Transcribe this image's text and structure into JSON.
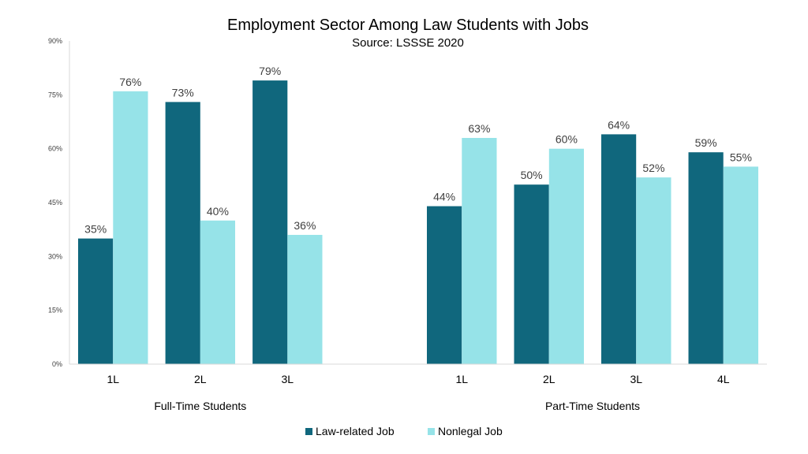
{
  "chart_data": {
    "type": "bar",
    "title": "Employment Sector Among Law Students with Jobs",
    "subtitle": "Source: LSSSE 2020",
    "ylim": [
      0,
      90
    ],
    "yticks": [
      "0%",
      "15%",
      "30%",
      "45%",
      "60%",
      "75%",
      "90%"
    ],
    "grid": false,
    "legend_position": "bottom",
    "groups": [
      {
        "label": "Full-Time Students",
        "categories": [
          "1L",
          "2L",
          "3L"
        ]
      },
      {
        "label": "Part-Time Students",
        "categories": [
          "1L",
          "2L",
          "3L",
          "4L"
        ]
      }
    ],
    "series": [
      {
        "name": "Law-related Job",
        "color": "#10677d",
        "values": [
          35,
          73,
          79,
          44,
          50,
          64,
          59
        ],
        "labels": [
          "35%",
          "73%",
          "79%",
          "44%",
          "50%",
          "64%",
          "59%"
        ]
      },
      {
        "name": "Nonlegal Job",
        "color": "#96e3e8",
        "values": [
          76,
          40,
          36,
          63,
          60,
          52,
          55
        ],
        "labels": [
          "76%",
          "40%",
          "36%",
          "63%",
          "60%",
          "52%",
          "55%"
        ]
      }
    ]
  }
}
